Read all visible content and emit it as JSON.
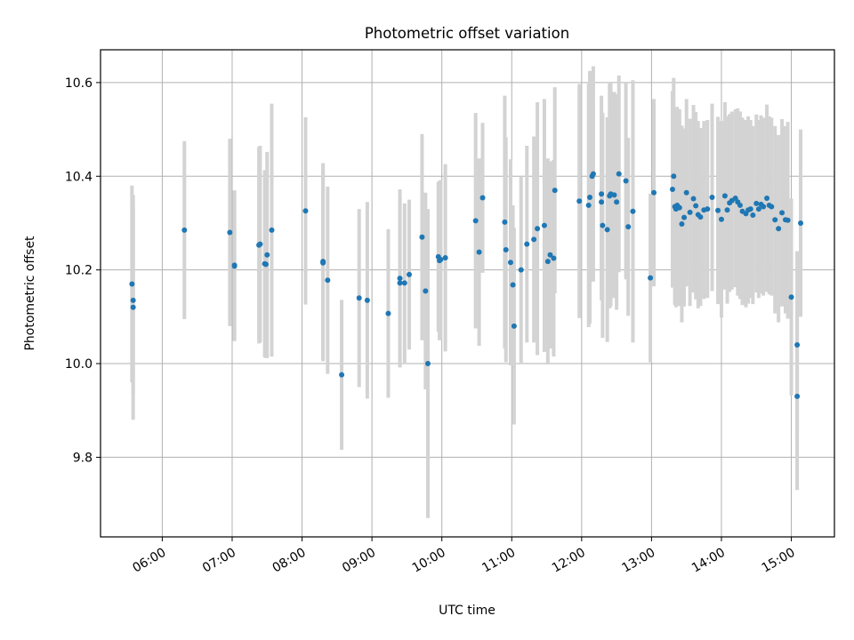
{
  "chart_data": {
    "type": "scatter",
    "title": "Photometric offset variation",
    "xlabel": "UTC time",
    "ylabel": "Photometric offset",
    "x_ticks": [
      "06:00",
      "07:00",
      "08:00",
      "09:00",
      "10:00",
      "11:00",
      "12:00",
      "13:00",
      "14:00",
      "15:00"
    ],
    "y_ticks": [
      "9.8",
      "10.0",
      "10.2",
      "10.4",
      "10.6"
    ],
    "xlim": [
      "05:07",
      "15:37"
    ],
    "ylim": [
      9.63,
      10.67
    ],
    "grid": true,
    "colors": {
      "point": "#1f77b4",
      "errorbar": "#d3d3d3",
      "grid": "#b0b0b0"
    },
    "series": [
      {
        "x": [
          "05:34",
          "05:35",
          "05:35",
          "06:19",
          "06:58",
          "07:02",
          "07:02",
          "07:23",
          "07:24",
          "07:28",
          "07:29",
          "07:30",
          "07:34",
          "08:03",
          "08:18",
          "08:18",
          "08:22",
          "08:34",
          "08:49",
          "08:56",
          "09:14",
          "09:24",
          "09:24",
          "09:28",
          "09:32",
          "09:43",
          "09:46",
          "09:48",
          "09:57",
          "09:58",
          "09:59",
          "10:03",
          "10:29",
          "10:32",
          "10:35",
          "10:54",
          "10:55",
          "10:59",
          "11:01",
          "11:02",
          "11:08",
          "11:13",
          "11:19",
          "11:22",
          "11:28",
          "11:31",
          "11:33",
          "11:36",
          "11:37",
          "11:58",
          "12:06",
          "12:07",
          "12:09",
          "12:10",
          "12:17",
          "12:17",
          "12:18",
          "12:22",
          "12:24",
          "12:25",
          "12:28",
          "12:30",
          "12:32",
          "12:38",
          "12:40",
          "12:44",
          "12:59",
          "13:02",
          "13:18",
          "13:19",
          "13:20",
          "13:21",
          "13:22",
          "13:24",
          "13:26",
          "13:28",
          "13:30",
          "13:33",
          "13:36",
          "13:38",
          "13:40",
          "13:42",
          "13:45",
          "13:48",
          "13:52",
          "13:57",
          "14:00",
          "14:03",
          "14:05",
          "14:07",
          "14:09",
          "14:12",
          "14:14",
          "14:16",
          "14:18",
          "14:21",
          "14:23",
          "14:25",
          "14:27",
          "14:30",
          "14:32",
          "14:34",
          "14:36",
          "14:39",
          "14:41",
          "14:43",
          "14:46",
          "14:49",
          "14:52",
          "14:55",
          "14:57",
          "15:00",
          "15:05",
          "15:05",
          "15:08"
        ],
        "y": [
          10.17,
          10.135,
          10.12,
          10.285,
          10.28,
          10.21,
          10.208,
          10.253,
          10.255,
          10.213,
          10.212,
          10.232,
          10.285,
          10.326,
          10.218,
          10.215,
          10.178,
          9.976,
          10.14,
          10.135,
          10.107,
          10.172,
          10.182,
          10.172,
          10.19,
          10.27,
          10.155,
          10.0,
          10.228,
          10.22,
          10.222,
          10.226,
          10.305,
          10.238,
          10.354,
          10.302,
          10.243,
          10.216,
          10.168,
          10.08,
          10.2,
          10.255,
          10.265,
          10.288,
          10.295,
          10.218,
          10.232,
          10.225,
          10.37,
          10.347,
          10.338,
          10.355,
          10.4,
          10.405,
          10.362,
          10.345,
          10.295,
          10.286,
          10.358,
          10.362,
          10.36,
          10.345,
          10.405,
          10.39,
          10.292,
          10.325,
          10.183,
          10.365,
          10.372,
          10.4,
          10.335,
          10.33,
          10.338,
          10.333,
          10.298,
          10.312,
          10.365,
          10.323,
          10.352,
          10.337,
          10.318,
          10.313,
          10.328,
          10.33,
          10.355,
          10.327,
          10.308,
          10.358,
          10.328,
          10.343,
          10.348,
          10.353,
          10.345,
          10.338,
          10.325,
          10.32,
          10.328,
          10.33,
          10.317,
          10.342,
          10.33,
          10.34,
          10.335,
          10.353,
          10.338,
          10.335,
          10.307,
          10.288,
          10.322,
          10.307,
          10.306,
          10.142,
          10.04,
          9.93,
          10.3
        ],
        "yerr": [
          0.21,
          0.2,
          0.24,
          0.19,
          0.2,
          0.16,
          0.16,
          0.21,
          0.21,
          0.2,
          0.2,
          0.22,
          0.27,
          0.2,
          0.21,
          0.21,
          0.2,
          0.16,
          0.19,
          0.21,
          0.18,
          0.18,
          0.19,
          0.17,
          0.16,
          0.22,
          0.21,
          0.33,
          0.16,
          0.17,
          0.17,
          0.2,
          0.23,
          0.2,
          0.16,
          0.27,
          0.24,
          0.22,
          0.17,
          0.21,
          0.2,
          0.21,
          0.22,
          0.27,
          0.27,
          0.22,
          0.2,
          0.21,
          0.22,
          0.25,
          0.26,
          0.27,
          0.21,
          0.23,
          0.21,
          0.21,
          0.24,
          0.24,
          0.24,
          0.24,
          0.22,
          0.23,
          0.21,
          0.21,
          0.19,
          0.28,
          0.18,
          0.2,
          0.21,
          0.21,
          0.21,
          0.21,
          0.21,
          0.21,
          0.21,
          0.19,
          0.2,
          0.2,
          0.2,
          0.2,
          0.2,
          0.19,
          0.19,
          0.19,
          0.2,
          0.2,
          0.21,
          0.2,
          0.2,
          0.19,
          0.19,
          0.19,
          0.2,
          0.2,
          0.2,
          0.2,
          0.2,
          0.19,
          0.19,
          0.19,
          0.19,
          0.19,
          0.19,
          0.2,
          0.19,
          0.19,
          0.2,
          0.2,
          0.2,
          0.2,
          0.21,
          0.21,
          0.2,
          0.2,
          0.2
        ]
      }
    ]
  }
}
